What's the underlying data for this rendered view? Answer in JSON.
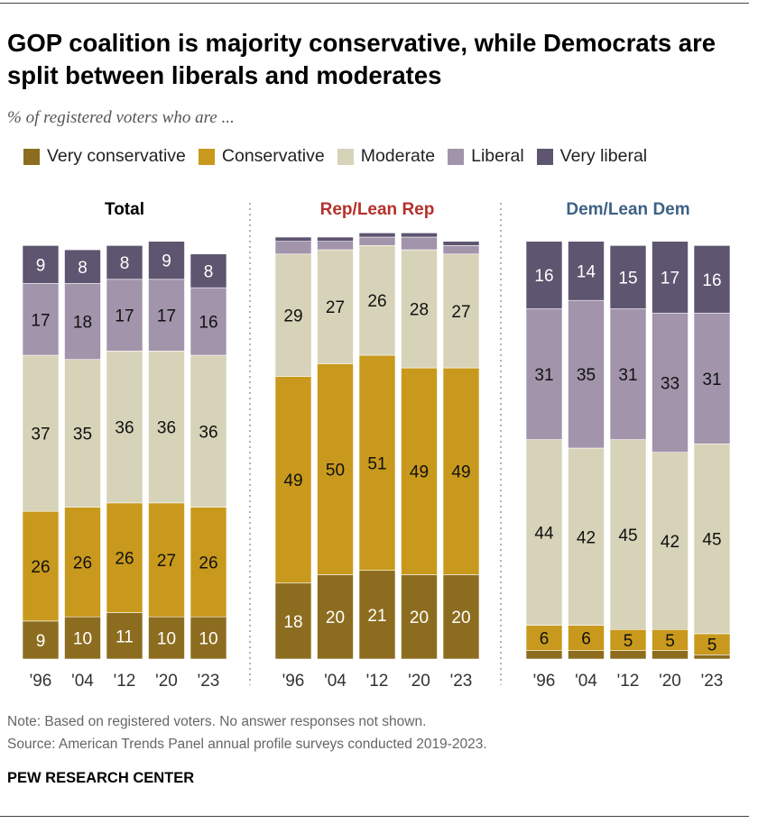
{
  "chart_data": {
    "type": "bar",
    "stacked": true,
    "title": "GOP coalition is majority conservative, while Democrats are split between liberals and moderates",
    "subtitle": "% of registered voters who are ...",
    "categories": [
      "'96",
      "'04",
      "'12",
      "'20",
      "'23"
    ],
    "legend": [
      "Very conservative",
      "Conservative",
      "Moderate",
      "Liberal",
      "Very liberal"
    ],
    "legend_placement": "top",
    "colors": {
      "Very conservative": "#8c6d1f",
      "Conservative": "#c8991c",
      "Moderate": "#d6d3b8",
      "Liberal": "#a194ab",
      "Very liberal": "#5e5570"
    },
    "panels": [
      {
        "title": "Total",
        "title_color": "#000000",
        "series": [
          {
            "name": "Very conservative",
            "values": [
              9,
              10,
              11,
              10,
              10
            ]
          },
          {
            "name": "Conservative",
            "values": [
              26,
              26,
              26,
              27,
              26
            ]
          },
          {
            "name": "Moderate",
            "values": [
              37,
              35,
              36,
              36,
              36
            ]
          },
          {
            "name": "Liberal",
            "values": [
              17,
              18,
              17,
              17,
              16
            ]
          },
          {
            "name": "Very liberal",
            "values": [
              9,
              8,
              8,
              9,
              8
            ]
          }
        ]
      },
      {
        "title": "Rep/Lean Rep",
        "title_color": "#b5302a",
        "series": [
          {
            "name": "Very conservative",
            "values": [
              18,
              20,
              21,
              20,
              20
            ]
          },
          {
            "name": "Conservative",
            "values": [
              49,
              50,
              51,
              49,
              49
            ]
          },
          {
            "name": "Moderate",
            "values": [
              29,
              27,
              26,
              28,
              27
            ]
          },
          {
            "name": "Liberal",
            "values": [
              3,
              2,
              2,
              3,
              2
            ],
            "labeled": false
          },
          {
            "name": "Very liberal",
            "values": [
              1,
              1,
              1,
              1,
              1
            ],
            "labeled": false
          }
        ]
      },
      {
        "title": "Dem/Lean Dem",
        "title_color": "#3e6185",
        "series": [
          {
            "name": "Very conservative",
            "values": [
              2,
              2,
              2,
              2,
              1
            ],
            "labeled": false
          },
          {
            "name": "Conservative",
            "values": [
              6,
              6,
              5,
              5,
              5
            ]
          },
          {
            "name": "Moderate",
            "values": [
              44,
              42,
              45,
              42,
              45
            ]
          },
          {
            "name": "Liberal",
            "values": [
              31,
              35,
              31,
              33,
              31
            ]
          },
          {
            "name": "Very liberal",
            "values": [
              16,
              14,
              15,
              17,
              16
            ]
          }
        ]
      }
    ],
    "ylim": [
      0,
      100
    ],
    "grid": false
  },
  "notes": {
    "note": "Note: Based on registered voters. No answer responses not shown.",
    "source": "Source: American Trends Panel annual profile surveys conducted 2019-2023.",
    "brand": "PEW RESEARCH CENTER"
  }
}
